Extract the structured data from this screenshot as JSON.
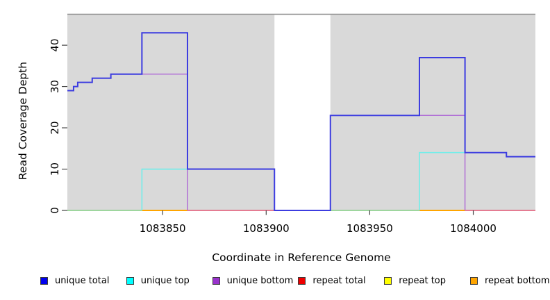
{
  "chart_data": {
    "type": "line",
    "subtype": "step-coverage-plot",
    "title": "",
    "xlabel": "Coordinate in Reference Genome",
    "ylabel": "Read Coverage Depth",
    "x_axis": {
      "min": 1083804,
      "max": 1084030,
      "ticks": [
        1083850,
        1083900,
        1083950,
        1084000
      ]
    },
    "y_axis": {
      "min": 0,
      "max": 47.5,
      "ticks": [
        0,
        10,
        20,
        30,
        40
      ]
    },
    "grid": "off",
    "legend_position": "bottom",
    "background": {
      "panel_color": "#d9d9d9",
      "top_border_color": "#8e8e8e",
      "gap_region": {
        "x_start": 1083904,
        "x_end": 1083931,
        "color": "#ffffff"
      }
    },
    "series": [
      {
        "name": "unique total",
        "color": "#0000ee",
        "line_color": "#3c3ce0",
        "steps": [
          [
            1083804,
            29
          ],
          [
            1083807,
            30
          ],
          [
            1083809,
            31
          ],
          [
            1083816,
            32
          ],
          [
            1083825,
            33
          ],
          [
            1083840,
            43
          ],
          [
            1083862,
            10
          ],
          [
            1083904,
            0
          ],
          [
            1083931,
            23
          ],
          [
            1083974,
            37
          ],
          [
            1083996,
            14
          ],
          [
            1084016,
            13
          ],
          [
            1084030,
            13
          ]
        ]
      },
      {
        "name": "unique top",
        "color": "#00ffff",
        "line_color": "#70eeea",
        "steps": [
          [
            1083804,
            0
          ],
          [
            1083840,
            10
          ],
          [
            1083904,
            0
          ],
          [
            1083931,
            0
          ],
          [
            1083974,
            14
          ],
          [
            1084016,
            13
          ],
          [
            1084030,
            13
          ]
        ]
      },
      {
        "name": "unique bottom",
        "color": "#9932cc",
        "line_color": "#a95cd5",
        "steps": [
          [
            1083804,
            29
          ],
          [
            1083807,
            30
          ],
          [
            1083809,
            31
          ],
          [
            1083816,
            32
          ],
          [
            1083825,
            33
          ],
          [
            1083862,
            0
          ],
          [
            1083931,
            23
          ],
          [
            1083996,
            0
          ],
          [
            1084030,
            0
          ]
        ]
      },
      {
        "name": "repeat total",
        "color": "#ee0000",
        "line_color": "#e05572",
        "steps": [
          [
            1083804,
            0
          ],
          [
            1084030,
            0
          ]
        ]
      },
      {
        "name": "repeat top",
        "color": "#ffff00",
        "line_color": "#ffff00",
        "steps": [
          [
            1083804,
            0
          ],
          [
            1084030,
            0
          ]
        ]
      },
      {
        "name": "repeat bottom",
        "color": "#ffa500",
        "line_color": "#ffa500",
        "steps": [
          [
            1083804,
            0
          ],
          [
            1084030,
            0
          ]
        ]
      }
    ],
    "render_segments": [
      {
        "name": "zero-line-green-left",
        "color": "#82cd82",
        "width": 1.5,
        "points": [
          [
            1083804,
            0
          ],
          [
            1083840,
            0
          ]
        ]
      },
      {
        "name": "zero-line-orange-left",
        "color": "#ffa500",
        "width": 2,
        "points": [
          [
            1083840,
            0
          ],
          [
            1083862,
            0
          ]
        ]
      },
      {
        "name": "zero-line-crimson-left",
        "color": "#e05572",
        "width": 1.5,
        "points": [
          [
            1083862,
            0
          ],
          [
            1083904,
            0
          ]
        ]
      },
      {
        "name": "zero-line-blue-gap",
        "color": "#4545e2",
        "width": 2,
        "points": [
          [
            1083904,
            0
          ],
          [
            1083931,
            0
          ]
        ]
      },
      {
        "name": "zero-line-green-right",
        "color": "#82cd82",
        "width": 1.5,
        "points": [
          [
            1083931,
            0
          ],
          [
            1083974,
            0
          ]
        ]
      },
      {
        "name": "zero-line-orange-right",
        "color": "#ffa500",
        "width": 2,
        "points": [
          [
            1083974,
            0
          ],
          [
            1083996,
            0
          ]
        ]
      },
      {
        "name": "zero-line-crimson-right",
        "color": "#e05572",
        "width": 1.5,
        "points": [
          [
            1083996,
            0
          ],
          [
            1084030,
            0
          ]
        ]
      },
      {
        "name": "unique-top-step-left",
        "color": "#70eeea",
        "width": 1.6,
        "points": [
          [
            1083840,
            0
          ],
          [
            1083840,
            10
          ],
          [
            1083862,
            10
          ]
        ]
      },
      {
        "name": "unique-top-step-right",
        "color": "#70eeea",
        "width": 1.6,
        "points": [
          [
            1083974,
            0
          ],
          [
            1083974,
            14
          ],
          [
            1083996,
            14
          ]
        ]
      },
      {
        "name": "unique-bottom-step-left",
        "color": "#a95cd5",
        "width": 1.3,
        "points": [
          [
            1083840,
            33
          ],
          [
            1083862,
            33
          ],
          [
            1083862,
            0
          ]
        ]
      },
      {
        "name": "unique-bottom-step-right",
        "color": "#a95cd5",
        "width": 1.3,
        "points": [
          [
            1083931,
            23
          ],
          [
            1083996,
            23
          ],
          [
            1083996,
            0
          ]
        ]
      }
    ]
  }
}
